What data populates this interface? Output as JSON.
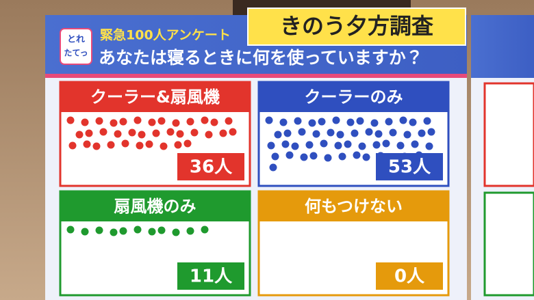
{
  "header": {
    "badge": [
      "とれ",
      "たてっ"
    ],
    "kicker": "緊急100人アンケート",
    "tag": "きのう夕方調査",
    "question": "あなたは寝るときに何を使っていますか？"
  },
  "panels": [
    {
      "label": "クーラー&扇風機",
      "value": 36,
      "value_label": "36人",
      "color": "#e2342c"
    },
    {
      "label": "クーラーのみ",
      "value": 53,
      "value_label": "53人",
      "color": "#2f4fbf"
    },
    {
      "label": "扇風機のみ",
      "value": 11,
      "value_label": "11人",
      "color": "#1f9a2e"
    },
    {
      "label": "何もつけない",
      "value": 0,
      "value_label": "0人",
      "color": "#e59a0c"
    }
  ]
}
